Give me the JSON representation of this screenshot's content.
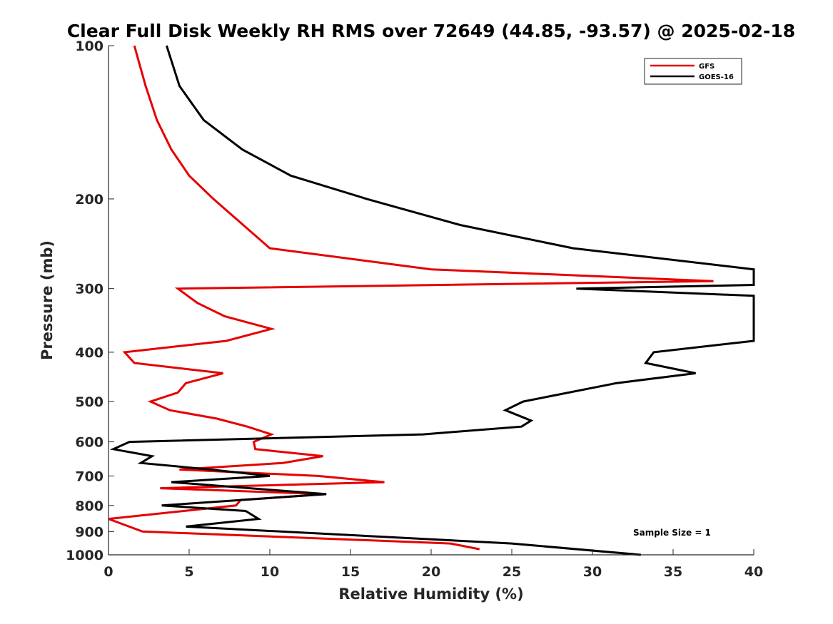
{
  "chart_data": {
    "type": "line",
    "title": "Clear Full Disk Weekly RH RMS over 72649 (44.85, -93.57) @ 2025-02-18",
    "xlabel": "Relative Humidity (%)",
    "ylabel": "Pressure (mb)",
    "xlim": [
      0,
      40
    ],
    "ylim": [
      100,
      1000
    ],
    "yscale": "log",
    "yreversed": true,
    "xticks": [
      0,
      5,
      10,
      15,
      20,
      25,
      30,
      35,
      40
    ],
    "yticks": [
      100,
      200,
      300,
      400,
      500,
      600,
      700,
      800,
      900,
      1000
    ],
    "legend_position": "top-right",
    "grid": false,
    "annotation": "Sample Size = 1",
    "series": [
      {
        "name": "GFS",
        "color": "#e60000",
        "x": [
          1.6,
          2.3,
          3.0,
          3.9,
          5.0,
          6.5,
          10.0,
          20.0,
          37.5,
          4.3,
          5.5,
          7.2,
          10.1,
          7.3,
          1.0,
          1.6,
          7.1,
          4.8,
          4.3,
          2.6,
          3.8,
          6.7,
          8.6,
          10.1,
          9.0,
          9.1,
          13.3,
          10.8,
          4.4,
          13.0,
          17.1,
          3.2,
          13.5,
          8.2,
          7.9,
          0.0,
          2.1,
          21.2,
          23.0
        ],
        "y": [
          100,
          120,
          140,
          160,
          180,
          200,
          250,
          275,
          290,
          300,
          320,
          340,
          360,
          380,
          400,
          420,
          440,
          460,
          480,
          500,
          520,
          540,
          560,
          580,
          600,
          620,
          640,
          660,
          680,
          700,
          720,
          740,
          760,
          780,
          800,
          850,
          900,
          950,
          975
        ]
      },
      {
        "name": "GOES-16",
        "color": "#000000",
        "x": [
          3.6,
          4.4,
          5.9,
          8.3,
          11.3,
          16.0,
          21.8,
          28.8,
          40.0,
          40.0,
          29.0,
          40.0,
          40.0,
          33.8,
          33.3,
          36.4,
          31.5,
          25.7,
          24.6,
          26.2,
          25.6,
          19.5,
          1.3,
          0.3,
          2.7,
          2.0,
          6.3,
          10.0,
          3.9,
          13.5,
          3.3,
          8.5,
          9.3,
          4.8,
          25.0,
          33.0
        ],
        "y": [
          100,
          120,
          140,
          160,
          180,
          200,
          225,
          250,
          275,
          295,
          300,
          310,
          380,
          400,
          420,
          440,
          460,
          500,
          520,
          545,
          560,
          580,
          600,
          620,
          640,
          660,
          680,
          700,
          720,
          760,
          800,
          820,
          850,
          880,
          950,
          1000
        ]
      }
    ]
  }
}
